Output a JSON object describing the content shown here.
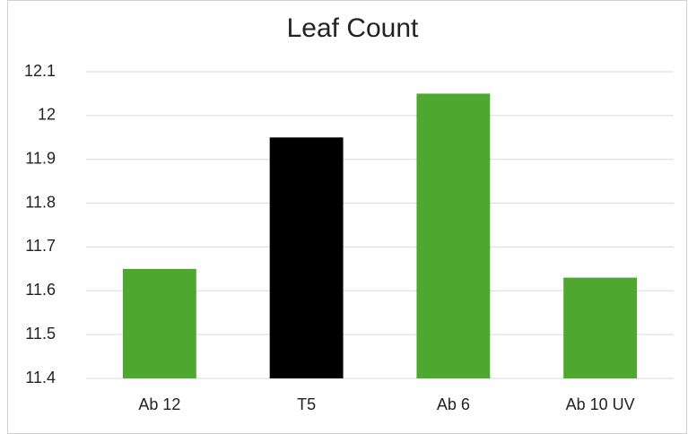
{
  "chart_data": {
    "type": "bar",
    "title": "Leaf Count",
    "categories": [
      "Ab 12",
      "T5",
      "Ab 6",
      "Ab 10 UV"
    ],
    "values": [
      11.65,
      11.95,
      12.05,
      11.63
    ],
    "colors": [
      "#4ea72e",
      "#000000",
      "#4ea72e",
      "#4ea72e"
    ],
    "ylim": [
      11.4,
      12.1
    ],
    "yticks": [
      11.4,
      11.5,
      11.6,
      11.7,
      11.8,
      11.9,
      12,
      12.1
    ],
    "grid": true
  }
}
